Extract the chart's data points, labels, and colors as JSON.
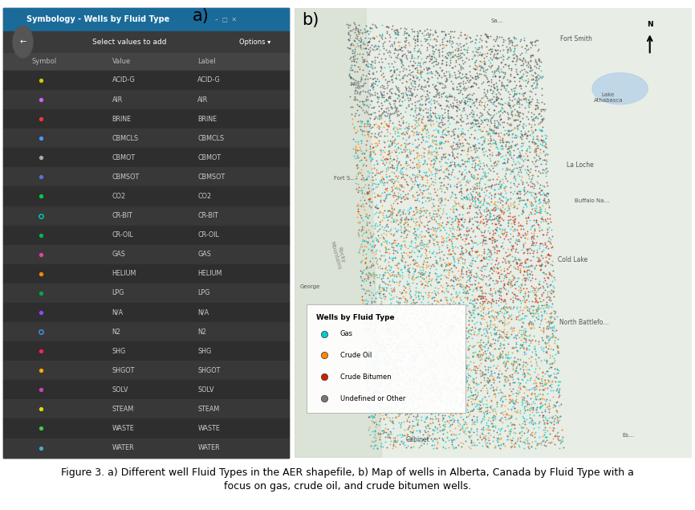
{
  "title": "Symbology - Wells by Fluid Type",
  "label_a": "a)",
  "label_b": "b)",
  "panel_bg": "#2b2b2b",
  "header_bg": "#1a6b9a",
  "row_dark": "#2e2e2e",
  "row_light": "#383838",
  "header_text": "#ffffff",
  "body_text": "#cccccc",
  "select_text": "Select values to add",
  "options_text": "Options",
  "columns": [
    "Symbol",
    "Value",
    "Label"
  ],
  "rows": [
    {
      "value": "ACID-G",
      "label": "ACID-G",
      "color": "#cccc00",
      "outline": false
    },
    {
      "value": "AIR",
      "label": "AIR",
      "color": "#cc66ff",
      "outline": false
    },
    {
      "value": "BRINE",
      "label": "BRINE",
      "color": "#ff3333",
      "outline": false
    },
    {
      "value": "CBMCLS",
      "label": "CBMCLS",
      "color": "#4499ff",
      "outline": false
    },
    {
      "value": "CBMOT",
      "label": "CBMOT",
      "color": "#aaaaaa",
      "outline": false
    },
    {
      "value": "CBMSOT",
      "label": "CBMSOT",
      "color": "#5577cc",
      "outline": false
    },
    {
      "value": "CO2",
      "label": "CO2",
      "color": "#00cc44",
      "outline": false
    },
    {
      "value": "CR-BIT",
      "label": "CR-BIT",
      "color": "#00bbaa",
      "outline": true
    },
    {
      "value": "CR-OIL",
      "label": "CR-OIL",
      "color": "#00bb44",
      "outline": false
    },
    {
      "value": "GAS",
      "label": "GAS",
      "color": "#dd44aa",
      "outline": false
    },
    {
      "value": "HELIUM",
      "label": "HELIUM",
      "color": "#ff8800",
      "outline": false
    },
    {
      "value": "LPG",
      "label": "LPG",
      "color": "#00aa44",
      "outline": false
    },
    {
      "value": "N/A",
      "label": "N/A",
      "color": "#9944ff",
      "outline": false
    },
    {
      "value": "N2",
      "label": "N2",
      "color": "#4488cc",
      "outline": true
    },
    {
      "value": "SHG",
      "label": "SHG",
      "color": "#ff2255",
      "outline": false
    },
    {
      "value": "SHGOT",
      "label": "SHGOT",
      "color": "#ffaa00",
      "outline": false
    },
    {
      "value": "SOLV",
      "label": "SOLV",
      "color": "#cc44bb",
      "outline": false
    },
    {
      "value": "STEAM",
      "label": "STEAM",
      "color": "#dddd00",
      "outline": false
    },
    {
      "value": "WASTE",
      "label": "WASTE",
      "color": "#44cc44",
      "outline": false
    },
    {
      "value": "WATER",
      "label": "WATER",
      "color": "#44aacc",
      "outline": false
    }
  ],
  "legend_title": "Wells by Fluid Type",
  "legend_items": [
    {
      "label": "Gas",
      "color": "#00cccc"
    },
    {
      "label": "Crude Oil",
      "color": "#ff8800"
    },
    {
      "label": "Crude Bitumen",
      "color": "#cc2200"
    },
    {
      "label": "Undefined or Other",
      "color": "#777777"
    }
  ],
  "caption": "Figure 3. a) Different well Fluid Types in the AER shapefile, b) Map of wells in Alberta, Canada by Fluid Type with a\nfocus on gas, crude oil, and crude bitumen wells.",
  "caption_fontsize": 9,
  "fig_bg": "#ffffff",
  "map_bg": "#e8ede6",
  "map_terrain": "#dde8d0"
}
